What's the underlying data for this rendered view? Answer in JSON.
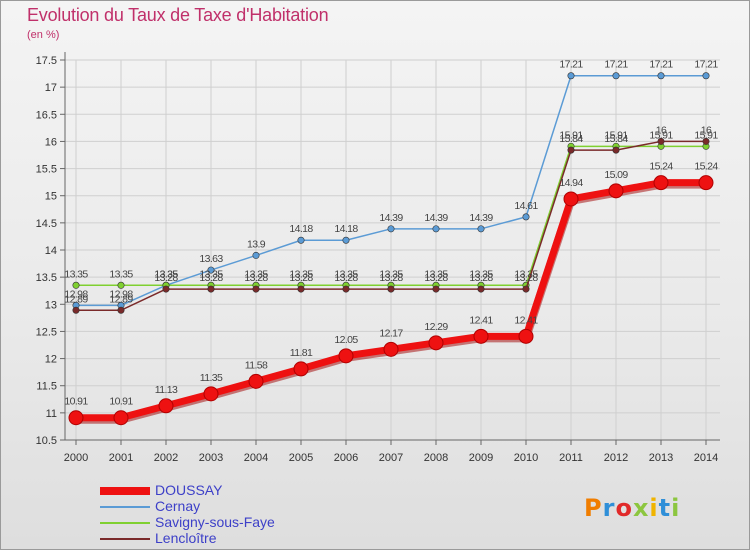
{
  "title": "Evolution du Taux de Taxe d'Habitation",
  "subtitle": "(en %)",
  "logo": {
    "text": "Proxiti",
    "colors": [
      "#f07d00",
      "#2f8fd8",
      "#e12a2a",
      "#8cc63f",
      "#f0b400",
      "#2f8fd8",
      "#8cc63f"
    ]
  },
  "chart_data": {
    "type": "line",
    "x": [
      "2000",
      "2001",
      "2002",
      "2003",
      "2004",
      "2005",
      "2006",
      "2007",
      "2008",
      "2009",
      "2010",
      "2011",
      "2012",
      "2013",
      "2014"
    ],
    "ylim": [
      10.5,
      17.5
    ],
    "yticks": [
      "10.5",
      "11",
      "11.5",
      "12",
      "12.5",
      "13",
      "13.5",
      "14",
      "14.5",
      "15",
      "15.5",
      "16",
      "16.5",
      "17",
      "17.5"
    ],
    "grid": true,
    "legend_position": "bottom-left",
    "series": [
      {
        "name": "Cernay",
        "color": "#5b9bd5",
        "values": [
          12.98,
          12.98,
          13.35,
          13.63,
          13.9,
          14.18,
          14.18,
          14.39,
          14.39,
          14.39,
          14.61,
          17.21,
          17.21,
          17.21,
          17.21
        ],
        "labels": [
          "12.98",
          "12.98",
          "13.35",
          "13.63",
          "13.9",
          "14.18",
          "14.18",
          "14.39",
          "14.39",
          "14.39",
          "14.61",
          "17.21",
          "17.21",
          "17.21",
          "17.21"
        ]
      },
      {
        "name": "Savigny-sous-Faye",
        "color": "#7fd030",
        "values": [
          13.35,
          13.35,
          13.35,
          13.35,
          13.35,
          13.35,
          13.35,
          13.35,
          13.35,
          13.35,
          13.35,
          15.91,
          15.91,
          15.91,
          15.91
        ],
        "labels": [
          "13.35",
          "13.35",
          "13.35",
          "13.35",
          "13.35",
          "13.35",
          "13.35",
          "13.35",
          "13.35",
          "13.35",
          "13.35",
          "15.91",
          "15.91",
          "15.91",
          "15.91"
        ]
      },
      {
        "name": "Lencloître",
        "color": "#7a2a2a",
        "values": [
          12.89,
          12.89,
          13.28,
          13.28,
          13.28,
          13.28,
          13.28,
          13.28,
          13.28,
          13.28,
          13.28,
          15.84,
          15.84,
          16.0,
          16.0
        ],
        "labels": [
          "12.89",
          "12.89",
          "13.28",
          "13.28",
          "13.28",
          "13.28",
          "13.28",
          "13.28",
          "13.28",
          "13.28",
          "13.28",
          "15.84",
          "15.84",
          "16",
          "16"
        ]
      },
      {
        "name": "DOUSSAY",
        "color": "#ee1111",
        "values": [
          10.91,
          10.91,
          11.13,
          11.35,
          11.58,
          11.81,
          12.05,
          12.17,
          12.29,
          12.41,
          12.41,
          14.94,
          15.09,
          15.24,
          15.24
        ],
        "labels": [
          "10.91",
          "10.91",
          "11.13",
          "11.35",
          "11.58",
          "11.81",
          "12.05",
          "12.17",
          "12.29",
          "12.41",
          "12.41",
          "14.94",
          "15.09",
          "15.24",
          "15.24"
        ]
      }
    ]
  }
}
